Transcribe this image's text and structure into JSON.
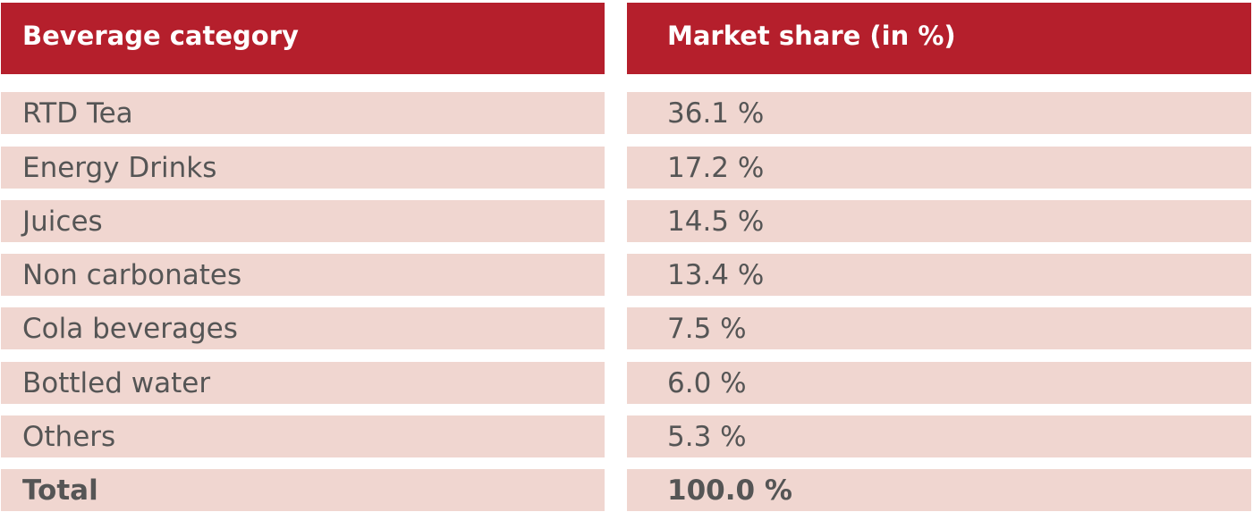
{
  "chart_data": {
    "type": "table",
    "columns": [
      "Beverage category",
      "Market share (in %)"
    ],
    "rows": [
      [
        "RTD Tea",
        "36.1 %"
      ],
      [
        "Energy Drinks",
        "17.2 %"
      ],
      [
        "Juices",
        "14.5 %"
      ],
      [
        "Non carbonates",
        "13.4 %"
      ],
      [
        "Cola beverages",
        "7.5 %"
      ],
      [
        "Bottled water",
        "6.0 %"
      ],
      [
        "Others",
        "5.3 %"
      ],
      [
        "Total",
        "100.0 %"
      ]
    ],
    "values": [
      36.1,
      17.2,
      14.5,
      13.4,
      7.5,
      6.0,
      5.3,
      100.0
    ]
  },
  "colors": {
    "header_bg": "#b51f2c",
    "header_text": "#ffffff",
    "row_bg": "#f0d6d0",
    "row_text": "#555555"
  }
}
